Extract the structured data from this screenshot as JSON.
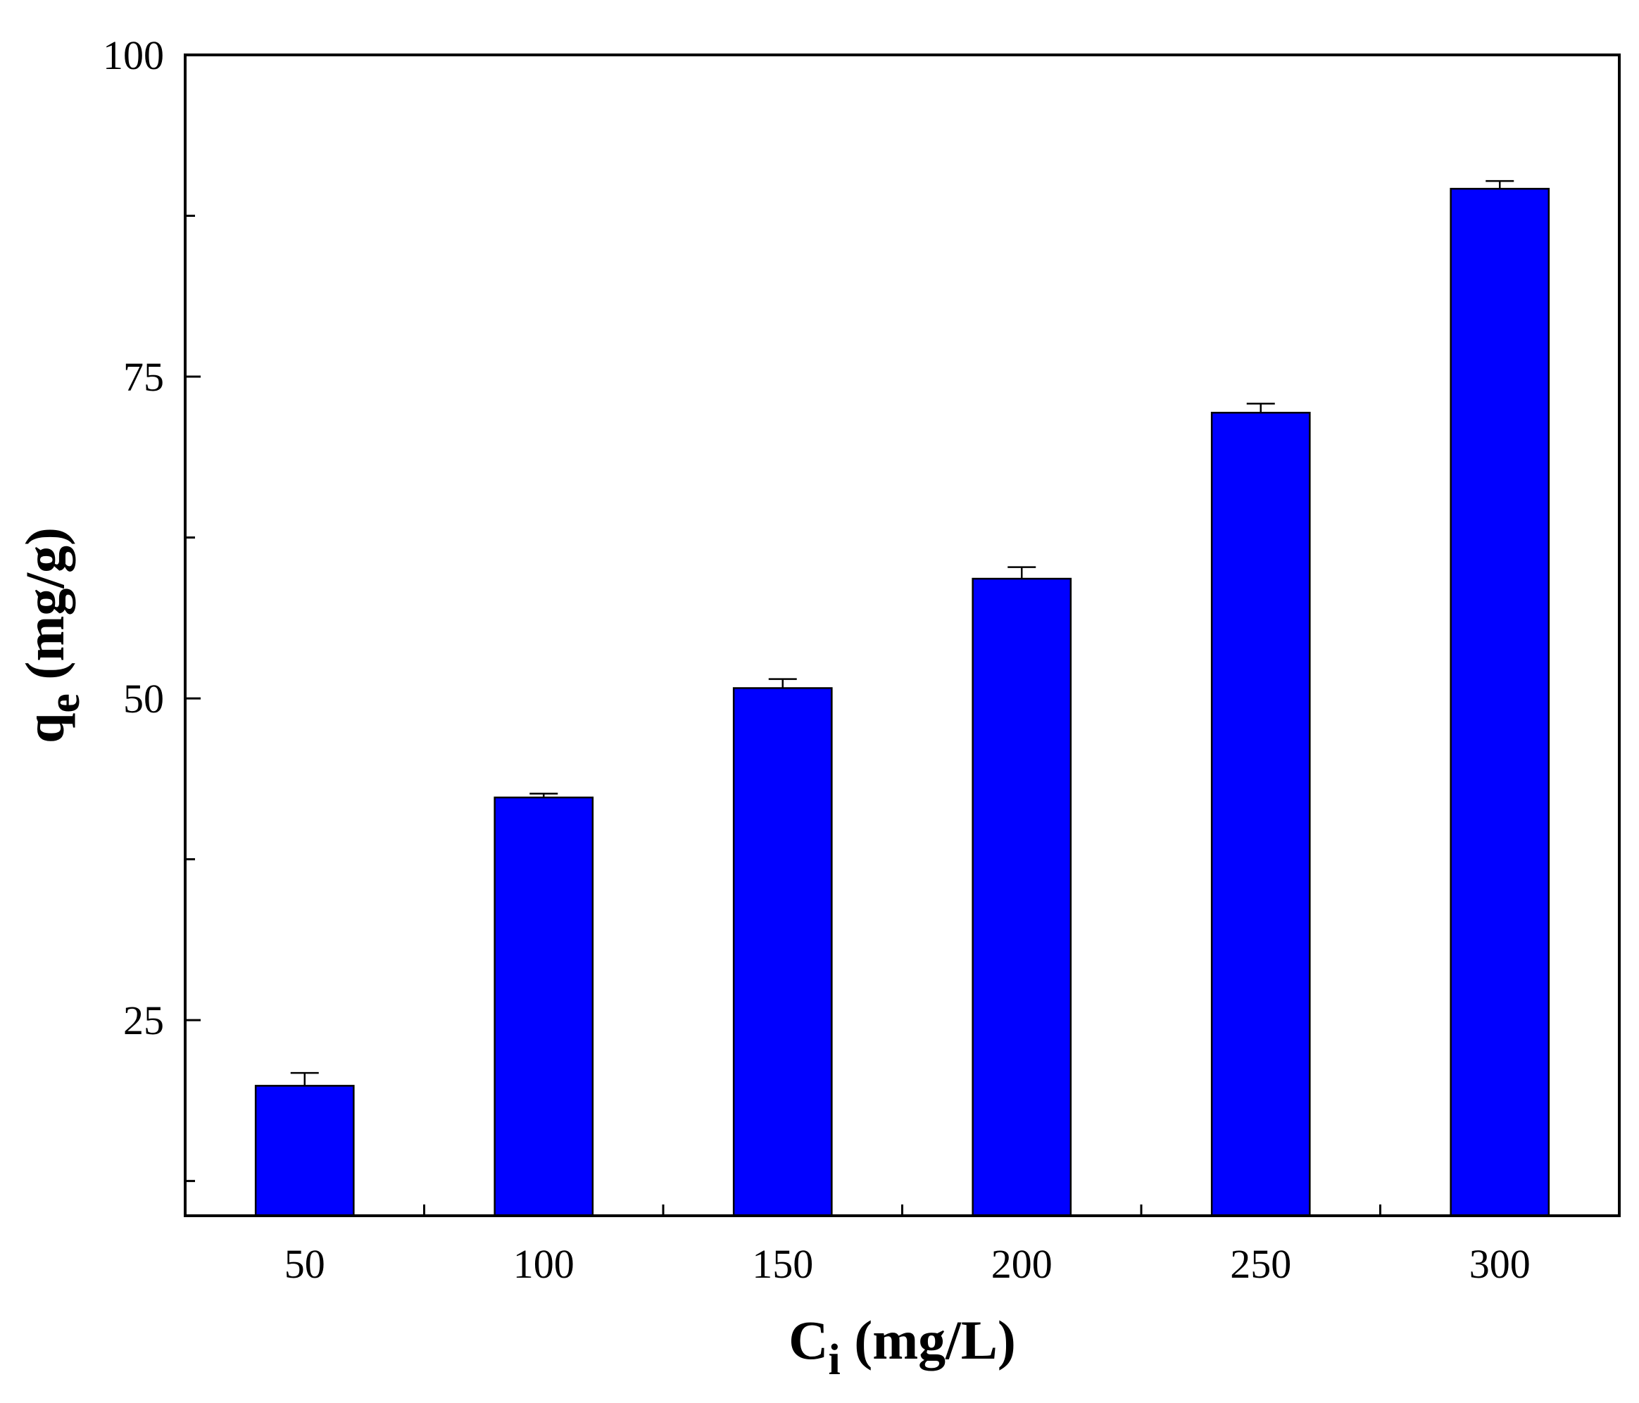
{
  "chart_data": {
    "type": "bar",
    "categories": [
      "50",
      "100",
      "150",
      "200",
      "250",
      "300"
    ],
    "values": [
      19.9,
      42.3,
      50.8,
      59.3,
      72.2,
      89.6
    ],
    "errors": [
      1.0,
      0.3,
      0.7,
      0.9,
      0.7,
      0.6
    ],
    "bar_color": "#0000FF",
    "xlabel": {
      "main": "C",
      "sub": "i",
      "rest": " (mg/L)"
    },
    "ylabel": {
      "main": "q",
      "sub": "e",
      "rest": " (mg/g)"
    },
    "ylim": [
      9.8,
      100
    ],
    "y_tick_labels": [
      "25",
      "50",
      "75",
      "100"
    ],
    "y_minor_ticks": [
      12.5,
      37.5,
      62.5,
      87.5
    ],
    "grid": false,
    "legend": "none"
  }
}
